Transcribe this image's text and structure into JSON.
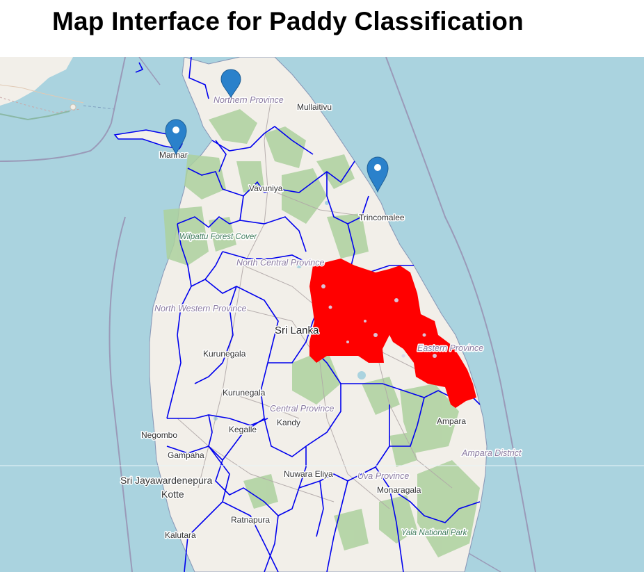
{
  "title": "Map Interface for Paddy Classification",
  "map": {
    "colors": {
      "water": "#aad3df",
      "land": "#f2efe9",
      "district_fill": "#d8d8ee",
      "boundary": "#0000ee",
      "classified_paddy": "#ff0000",
      "forest": "#add19e",
      "marker": "#2a81cb"
    },
    "markers": [
      {
        "name": "marker-jaffna",
        "icon": "map-pin-icon"
      },
      {
        "name": "marker-mannar",
        "icon": "map-pin-icon"
      },
      {
        "name": "marker-trincomalee",
        "icon": "map-pin-icon"
      }
    ],
    "labels": {
      "northern_province": "Northern Province",
      "mullaitivu": "Mullaitivu",
      "mannar": "Mannar",
      "vavuniya": "Vavuniya",
      "trincomalee": "Trincomalee",
      "wilpattu": "Wilpattu Forest Cover",
      "north_central_province": "North Central Province",
      "sri_lanka": "Sri Lanka",
      "north_western_province": "North Western Province",
      "kurunegala_top": "Kurunegala",
      "kurunegala": "Kurunegala",
      "eastern_province": "Eastern Province",
      "central_province": "Central Province",
      "kandy": "Kandy",
      "kegalle": "Kegalle",
      "ampara": "Ampara",
      "ampara_district": "Ampara District",
      "negombo": "Negombo",
      "gampaha": "Gampaha",
      "sri_jayawardenepura": "Sri Jayawardenepura",
      "kotte": "Kotte",
      "nuwara_eliya": "Nuwara Eliya",
      "uva_province": "Uva Province",
      "monaragala": "Monaragala",
      "ratnapura": "Ratnapura",
      "kalutara": "Kalutara",
      "yala": "Yala National Park"
    }
  }
}
